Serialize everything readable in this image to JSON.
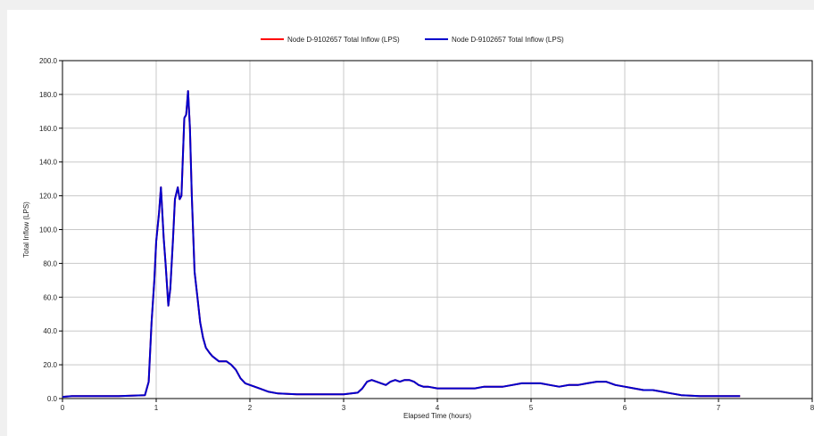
{
  "chart_data": {
    "type": "line",
    "title": "",
    "xlabel": "Elapsed Time (hours)",
    "ylabel": "Total Inflow (LPS)",
    "xlim": [
      0,
      8
    ],
    "ylim": [
      0,
      200
    ],
    "xticks": [
      0,
      1,
      2,
      3,
      4,
      5,
      6,
      7,
      8
    ],
    "xtick_labels": [
      "0",
      "1",
      "2",
      "3",
      "4",
      "5",
      "6",
      "7",
      "8"
    ],
    "yticks": [
      0,
      20,
      40,
      60,
      80,
      100,
      120,
      140,
      160,
      180,
      200
    ],
    "ytick_labels": [
      "0.0",
      "20.0",
      "40.0",
      "60.0",
      "80.0",
      "100.0",
      "120.0",
      "140.0",
      "160.0",
      "180.0",
      "200.0"
    ],
    "grid": true,
    "legend_position": "top-center",
    "series": [
      {
        "name": "Node D-9102657 Total Inflow (LPS)",
        "color": "#ff0000",
        "x": [
          0,
          0.1,
          0.6,
          0.88,
          0.92,
          0.95,
          0.98,
          1.0,
          1.03,
          1.05,
          1.08,
          1.1,
          1.13,
          1.15,
          1.18,
          1.2,
          1.23,
          1.25,
          1.27,
          1.3,
          1.32,
          1.34,
          1.36,
          1.38,
          1.41,
          1.44,
          1.47,
          1.5,
          1.53,
          1.57,
          1.6,
          1.67,
          1.75,
          1.8,
          1.85,
          1.9,
          1.95,
          2.0,
          2.05,
          2.1,
          2.2,
          2.3,
          2.5,
          2.8,
          3.0,
          3.15,
          3.2,
          3.25,
          3.3,
          3.35,
          3.4,
          3.45,
          3.5,
          3.55,
          3.6,
          3.65,
          3.7,
          3.75,
          3.8,
          3.85,
          3.9,
          4.0,
          4.1,
          4.2,
          4.3,
          4.4,
          4.5,
          4.6,
          4.7,
          4.8,
          4.9,
          5.0,
          5.1,
          5.2,
          5.3,
          5.4,
          5.5,
          5.6,
          5.7,
          5.8,
          5.9,
          6.0,
          6.1,
          6.2,
          6.3,
          6.4,
          6.5,
          6.6,
          6.8,
          7.0,
          7.23
        ],
        "y": [
          1,
          1.5,
          1.5,
          2,
          10,
          45,
          70,
          93,
          110,
          125,
          95,
          80,
          55,
          65,
          95,
          118,
          125,
          118,
          120,
          166,
          168,
          182,
          160,
          120,
          75,
          60,
          45,
          36,
          30,
          27,
          25,
          22,
          22,
          20,
          17,
          12,
          9,
          8,
          7,
          6,
          4,
          3,
          2.5,
          2.5,
          2.5,
          3.5,
          6,
          10,
          11,
          10,
          9,
          8,
          10,
          11,
          10,
          11,
          11,
          10,
          8,
          7,
          7,
          6,
          6,
          6,
          6,
          6,
          7,
          7,
          7,
          8,
          9,
          9,
          9,
          8,
          7,
          8,
          8,
          9,
          10,
          10,
          8,
          7,
          6,
          5,
          5,
          4,
          3,
          2,
          1.5,
          1.5,
          1.5
        ]
      },
      {
        "name": "Node D-9102657 Total Inflow (LPS)",
        "color": "#0000cc",
        "x": [
          0,
          0.1,
          0.6,
          0.88,
          0.92,
          0.95,
          0.98,
          1.0,
          1.03,
          1.05,
          1.08,
          1.1,
          1.13,
          1.15,
          1.18,
          1.2,
          1.23,
          1.25,
          1.27,
          1.3,
          1.32,
          1.34,
          1.36,
          1.38,
          1.41,
          1.44,
          1.47,
          1.5,
          1.53,
          1.57,
          1.6,
          1.67,
          1.75,
          1.8,
          1.85,
          1.9,
          1.95,
          2.0,
          2.05,
          2.1,
          2.2,
          2.3,
          2.5,
          2.8,
          3.0,
          3.15,
          3.2,
          3.25,
          3.3,
          3.35,
          3.4,
          3.45,
          3.5,
          3.55,
          3.6,
          3.65,
          3.7,
          3.75,
          3.8,
          3.85,
          3.9,
          4.0,
          4.1,
          4.2,
          4.3,
          4.4,
          4.5,
          4.6,
          4.7,
          4.8,
          4.9,
          5.0,
          5.1,
          5.2,
          5.3,
          5.4,
          5.5,
          5.6,
          5.7,
          5.8,
          5.9,
          6.0,
          6.1,
          6.2,
          6.3,
          6.4,
          6.5,
          6.6,
          6.8,
          7.0,
          7.23
        ],
        "y": [
          1,
          1.5,
          1.5,
          2,
          10,
          45,
          70,
          93,
          110,
          125,
          95,
          80,
          55,
          65,
          95,
          118,
          125,
          118,
          120,
          166,
          168,
          182,
          160,
          120,
          75,
          60,
          45,
          36,
          30,
          27,
          25,
          22,
          22,
          20,
          17,
          12,
          9,
          8,
          7,
          6,
          4,
          3,
          2.5,
          2.5,
          2.5,
          3.5,
          6,
          10,
          11,
          10,
          9,
          8,
          10,
          11,
          10,
          11,
          11,
          10,
          8,
          7,
          7,
          6,
          6,
          6,
          6,
          6,
          7,
          7,
          7,
          8,
          9,
          9,
          9,
          8,
          7,
          8,
          8,
          9,
          10,
          10,
          8,
          7,
          6,
          5,
          5,
          4,
          3,
          2,
          1.5,
          1.5,
          1.5
        ]
      }
    ]
  }
}
